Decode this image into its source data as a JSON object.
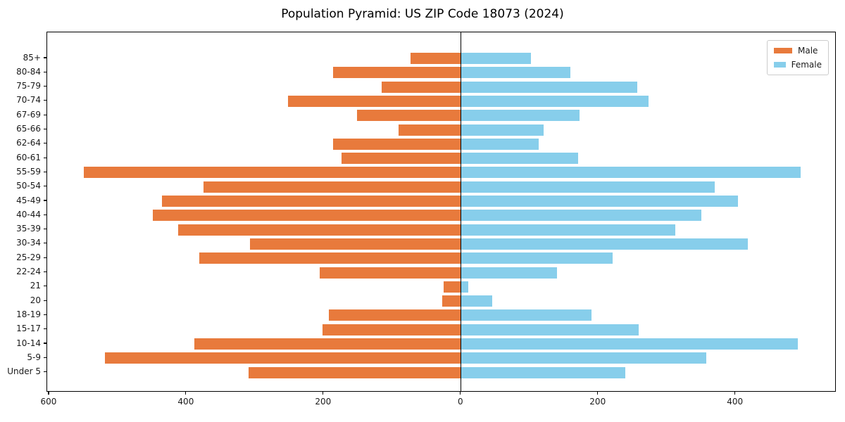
{
  "title": "Population Pyramid: US ZIP Code 18073 (2024)",
  "colors": {
    "male": "#E87A3C",
    "female": "#87CEEB",
    "axis": "#000000",
    "legend_border": "#cccccc"
  },
  "legend": {
    "position": "upper right"
  },
  "chart_data": {
    "type": "bar",
    "orientation": "horizontal",
    "subtype": "population-pyramid",
    "title": "Population Pyramid: US ZIP Code 18073 (2024)",
    "categories_top_to_bottom": [
      "85+",
      "80-84",
      "75-79",
      "70-74",
      "67-69",
      "65-66",
      "62-64",
      "60-61",
      "55-59",
      "50-54",
      "45-49",
      "40-44",
      "35-39",
      "30-34",
      "25-29",
      "22-24",
      "21",
      "20",
      "18-19",
      "15-17",
      "10-14",
      "5-9",
      "Under 5"
    ],
    "series": [
      {
        "name": "Male",
        "side": "left",
        "color": "#E87A3C",
        "values": [
          74,
          187,
          116,
          252,
          152,
          91,
          186,
          174,
          550,
          375,
          436,
          449,
          412,
          308,
          381,
          206,
          25,
          28,
          193,
          202,
          389,
          519,
          310
        ]
      },
      {
        "name": "Female",
        "side": "right",
        "color": "#87CEEB",
        "values": [
          101,
          159,
          256,
          272,
          172,
          120,
          112,
          170,
          494,
          369,
          403,
          349,
          311,
          417,
          220,
          139,
          10,
          45,
          189,
          258,
          490,
          356,
          239
        ]
      }
    ],
    "x_ticks": [
      {
        "value": -600,
        "label": "600"
      },
      {
        "value": -400,
        "label": "400"
      },
      {
        "value": -200,
        "label": "200"
      },
      {
        "value": 0,
        "label": "0"
      },
      {
        "value": 200,
        "label": "200"
      },
      {
        "value": 400,
        "label": "400"
      }
    ],
    "xlim": [
      -603,
      547
    ],
    "grid": false,
    "legend_position": "upper right"
  }
}
